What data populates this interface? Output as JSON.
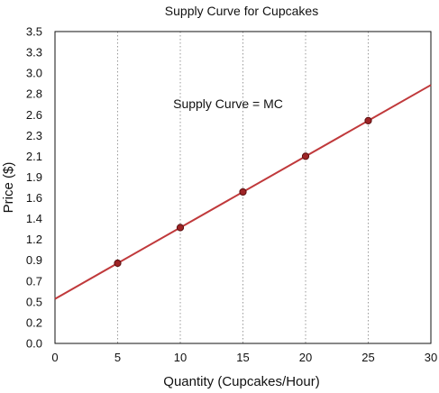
{
  "chart_data": {
    "type": "line",
    "title": "Supply Curve for Cupcakes",
    "xlabel": "Quantity (Cupcakes/Hour)",
    "ylabel": "Price ($)",
    "annotation": "Supply Curve = MC",
    "xlim": [
      0,
      30
    ],
    "ylim": [
      0,
      3.5
    ],
    "x_ticks": [
      "0",
      "5",
      "10",
      "15",
      "20",
      "25",
      "30"
    ],
    "y_ticks": [
      "0.0",
      "0.2",
      "0.5",
      "0.7",
      "0.9",
      "1.2",
      "1.4",
      "1.6",
      "1.9",
      "2.1",
      "2.3",
      "2.6",
      "2.8",
      "3.0",
      "3.3",
      "3.5"
    ],
    "grid": {
      "vertical": true,
      "horizontal": false,
      "style": "dotted"
    },
    "series": [
      {
        "line": {
          "x": [
            0,
            30
          ],
          "y": [
            0.5,
            2.9
          ]
        },
        "points": {
          "x": [
            5,
            10,
            15,
            20,
            25
          ],
          "y": [
            0.9,
            1.3,
            1.7,
            2.1,
            2.5
          ]
        },
        "color": "#c0393b"
      }
    ]
  }
}
